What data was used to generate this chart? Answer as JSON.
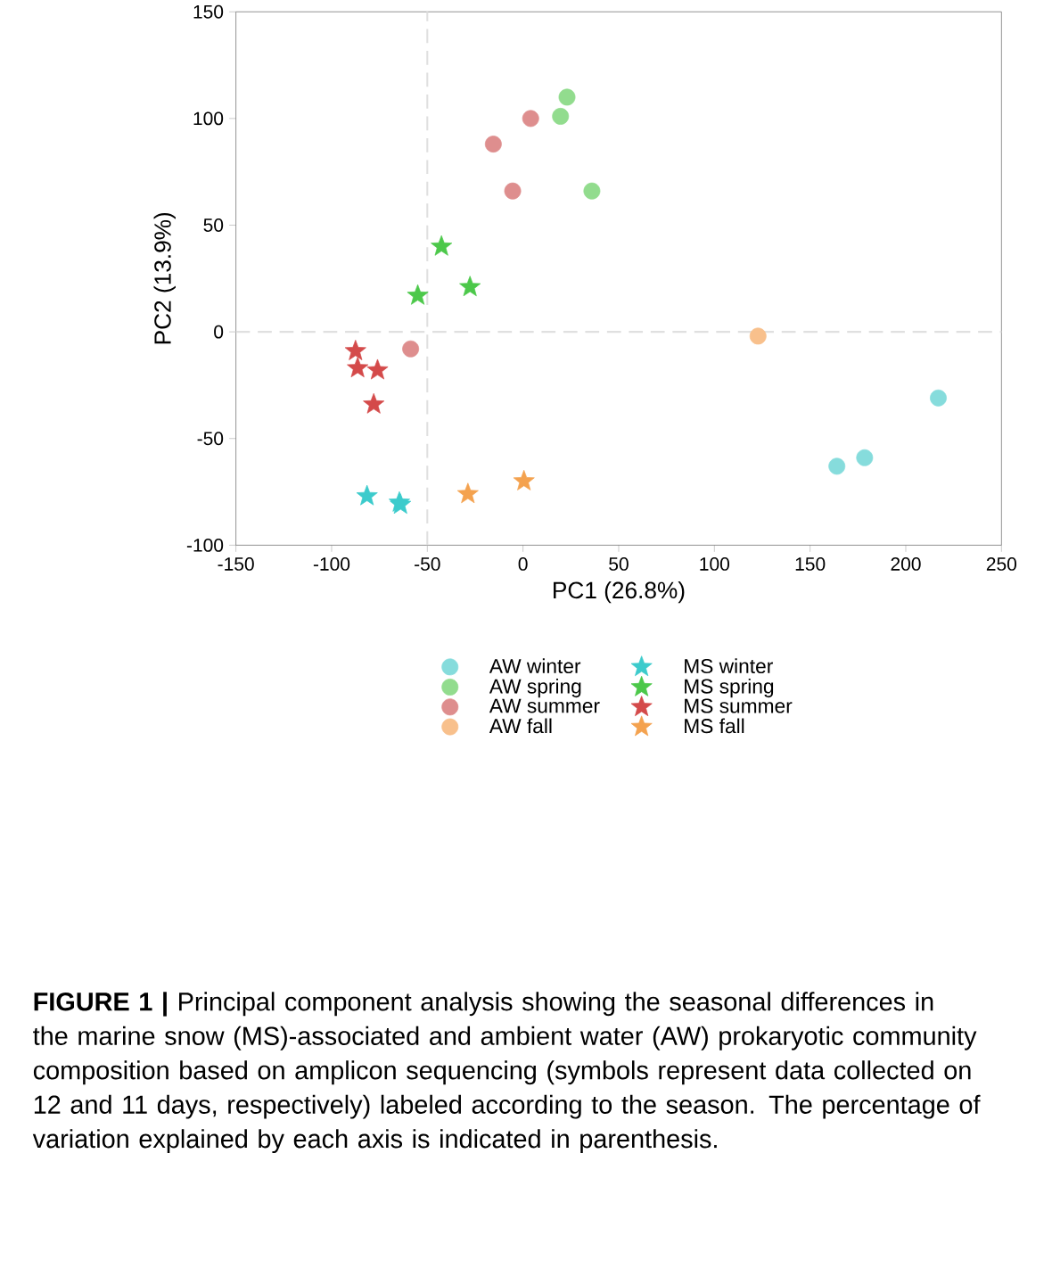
{
  "chart_data": {
    "type": "scatter",
    "xlabel": "PC1 (26.8%)",
    "ylabel": "PC2 (13.9%)",
    "xlim": [
      -150,
      250
    ],
    "xticks": [
      -150,
      -100,
      -50,
      0,
      50,
      100,
      150,
      200,
      250
    ],
    "ylim": [
      -100,
      150
    ],
    "yticks": [
      -100,
      -50,
      0,
      50,
      100,
      150
    ],
    "grid": false,
    "legend": "bottom",
    "ref_lines": [
      {
        "axis": "x",
        "value": -50,
        "color": "#e0e0e0",
        "line_style": "dashed"
      },
      {
        "axis": "y",
        "value": 0,
        "color": "#e0e0e0",
        "line_style": "dashed"
      }
    ],
    "series": [
      {
        "name": "AW winter",
        "color": "#86dcdc",
        "marker": "circle",
        "x": [
          217,
          178.5,
          164
        ],
        "values": [
          -31,
          -59,
          -63
        ]
      },
      {
        "name": "AW spring",
        "color": "#92dc8e",
        "marker": "circle",
        "x": [
          23,
          19.6,
          36
        ],
        "values": [
          110,
          101,
          66
        ]
      },
      {
        "name": "AW summer",
        "color": "#de8e8e",
        "marker": "circle",
        "x": [
          4,
          -15.5,
          -5.4,
          -58.7
        ],
        "values": [
          100,
          88,
          66,
          -8
        ]
      },
      {
        "name": "AW fall",
        "color": "#f8c08c",
        "marker": "circle",
        "x": [
          122.8
        ],
        "values": [
          -2
        ]
      },
      {
        "name": "MS winter",
        "color": "#3ccbcc",
        "marker": "star",
        "x": [
          -81.5,
          -64.6,
          -64
        ],
        "values": [
          -77,
          -80,
          -81
        ]
      },
      {
        "name": "MS spring",
        "color": "#4cc84a",
        "marker": "star",
        "x": [
          -42.6,
          -55,
          -27.7
        ],
        "values": [
          40,
          17,
          21
        ]
      },
      {
        "name": "MS summer",
        "color": "#d44a4a",
        "marker": "star",
        "x": [
          -87.5,
          -86.4,
          -76,
          -78
        ],
        "values": [
          -9,
          -17,
          -18,
          -34
        ]
      },
      {
        "name": "MS fall",
        "color": "#f4a24f",
        "marker": "star",
        "x": [
          -28.8,
          0.5
        ],
        "values": [
          -76,
          -70
        ]
      }
    ],
    "annotations": [
      "**FIGURE 1 |** Principal component analysis showing the seasonal differences in the marine snow (MS)-associated and ambient water (AW) prokaryotic community composition based on amplicon sequencing (symbols represent data collected on 12 and 11 days, respectively) labeled according to the season. The percentage of variation explained by each axis is indicated in parenthesis."
    ]
  }
}
